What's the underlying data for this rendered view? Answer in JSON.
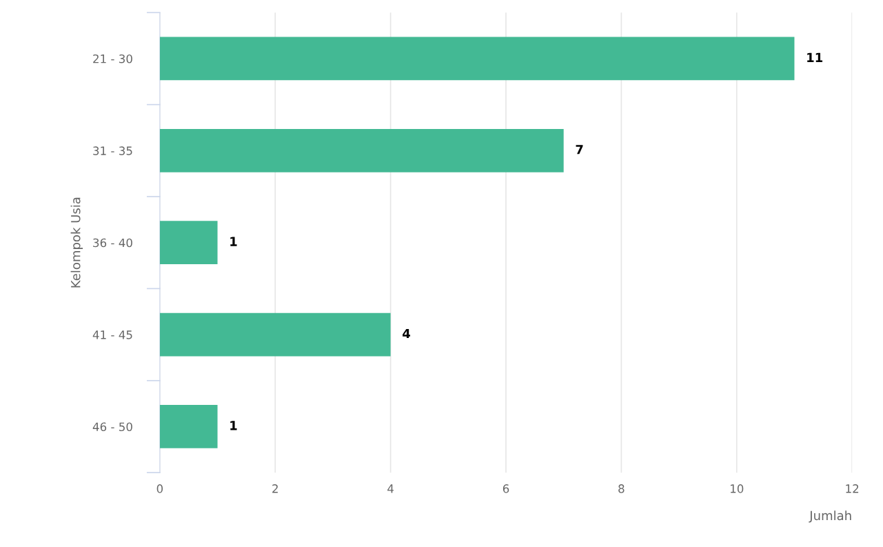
{
  "chart_data": {
    "type": "bar",
    "orientation": "horizontal",
    "categories": [
      "21 - 30",
      "31 - 35",
      "36 - 40",
      "41 - 45",
      "46 - 50"
    ],
    "values": [
      11,
      7,
      1,
      4,
      1
    ],
    "color": "#43b994",
    "xlim": [
      0,
      12
    ],
    "xticks": [
      0,
      2,
      4,
      6,
      8,
      10,
      12
    ],
    "grid": "x",
    "data_labels": true,
    "xlabel": "Jumlah",
    "ylabel": "Kelompok Usia",
    "legend": false
  }
}
